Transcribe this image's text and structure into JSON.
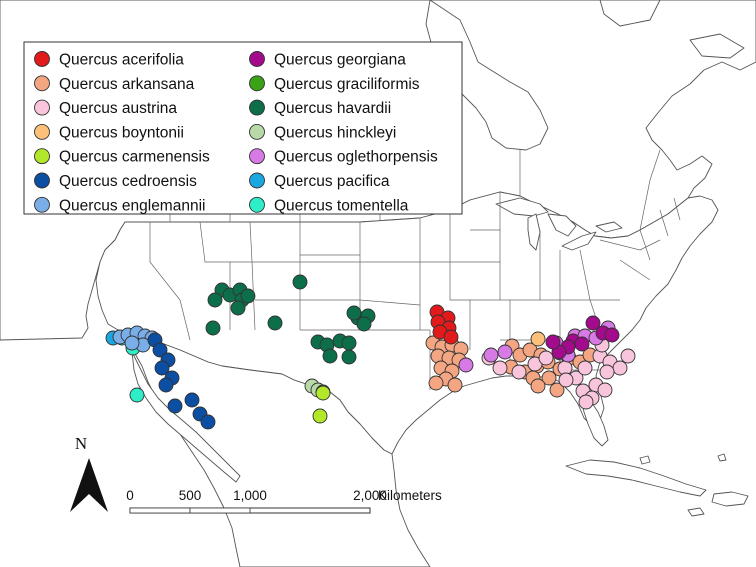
{
  "colors": {
    "land": "#ffffff",
    "sea": "#ffffff",
    "boundary": "#555555",
    "marker_outline": "#333333"
  },
  "legend": {
    "entries": [
      {
        "key": "acerifolia",
        "label": "Quercus acerifolia",
        "color": "#e31a1c"
      },
      {
        "key": "arkansana",
        "label": "Quercus arkansana",
        "color": "#f4a582"
      },
      {
        "key": "austrina",
        "label": "Quercus austrina",
        "color": "#f9c5dc"
      },
      {
        "key": "boyntonii",
        "label": "Quercus boyntonii",
        "color": "#fdc07a"
      },
      {
        "key": "carmenensis",
        "label": "Quercus carmenensis",
        "color": "#b3e82a"
      },
      {
        "key": "cedroensis",
        "label": "Quercus cedroensis",
        "color": "#0c4ea2"
      },
      {
        "key": "englemannii",
        "label": "Quercus englemannii",
        "color": "#7aaee8"
      },
      {
        "key": "georgiana",
        "label": "Quercus georgiana",
        "color": "#a30b8c"
      },
      {
        "key": "graciliformis",
        "label": "Quercus graciliformis",
        "color": "#3aa315"
      },
      {
        "key": "havardii",
        "label": "Quercus havardii",
        "color": "#0d6e4a"
      },
      {
        "key": "hinckleyi",
        "label": "Quercus hinckleyi",
        "color": "#b9d9a8"
      },
      {
        "key": "oglethorpensis",
        "label": "Quercus oglethorpensis",
        "color": "#d77ae6"
      },
      {
        "key": "pacifica",
        "label": "Quercus pacifica",
        "color": "#1aa7e0"
      },
      {
        "key": "tomentella",
        "label": "Quercus tomentella",
        "color": "#2eeec8"
      }
    ]
  },
  "north_arrow": {
    "label": "N"
  },
  "scale_bar": {
    "ticks": [
      "0",
      "500",
      "1,000",
      "2,000"
    ],
    "tick_values_km": [
      0,
      500,
      1000,
      2000
    ],
    "unit": "Kilometers"
  },
  "occurrences": {
    "acerifolia": [
      [
        437,
        312
      ],
      [
        448,
        318
      ],
      [
        438,
        322
      ],
      [
        449,
        328
      ],
      [
        440,
        332
      ],
      [
        451,
        337
      ]
    ],
    "arkansana": [
      [
        433,
        343
      ],
      [
        442,
        347
      ],
      [
        452,
        345
      ],
      [
        461,
        349
      ],
      [
        438,
        356
      ],
      [
        449,
        358
      ],
      [
        459,
        360
      ],
      [
        441,
        368
      ],
      [
        452,
        371
      ],
      [
        446,
        379
      ],
      [
        436,
        383
      ],
      [
        455,
        385
      ],
      [
        512,
        346
      ],
      [
        520,
        355
      ],
      [
        530,
        350
      ],
      [
        541,
        355
      ],
      [
        511,
        367
      ],
      [
        525,
        372
      ],
      [
        537,
        366
      ],
      [
        548,
        362
      ],
      [
        560,
        369
      ],
      [
        549,
        378
      ],
      [
        533,
        378
      ],
      [
        538,
        386
      ],
      [
        557,
        390
      ],
      [
        569,
        358
      ],
      [
        580,
        362
      ],
      [
        590,
        355
      ]
    ],
    "austrina": [
      [
        489,
        358
      ],
      [
        500,
        368
      ],
      [
        519,
        372
      ],
      [
        535,
        364
      ],
      [
        546,
        358
      ],
      [
        565,
        368
      ],
      [
        576,
        378
      ],
      [
        585,
        368
      ],
      [
        600,
        356
      ],
      [
        610,
        362
      ],
      [
        620,
        368
      ],
      [
        607,
        372
      ],
      [
        628,
        356
      ],
      [
        596,
        385
      ],
      [
        605,
        390
      ],
      [
        583,
        391
      ],
      [
        592,
        398
      ],
      [
        586,
        402
      ],
      [
        566,
        380
      ],
      [
        560,
        353
      ],
      [
        602,
        345
      ]
    ],
    "boyntonii": [
      [
        538,
        339
      ]
    ],
    "carmenensis": [
      [
        323,
        393
      ],
      [
        320,
        416
      ]
    ],
    "cedroensis": [
      [
        155,
        340
      ],
      [
        160,
        350
      ],
      [
        168,
        360
      ],
      [
        162,
        368
      ],
      [
        172,
        378
      ],
      [
        166,
        385
      ],
      [
        192,
        400
      ],
      [
        175,
        406
      ],
      [
        200,
        414
      ],
      [
        208,
        422
      ]
    ],
    "englemannii": [
      [
        120,
        337
      ],
      [
        128,
        335
      ],
      [
        137,
        333
      ],
      [
        145,
        336
      ],
      [
        152,
        338
      ],
      [
        143,
        345
      ],
      [
        132,
        343
      ]
    ],
    "georgiana": [
      [
        573,
        341
      ],
      [
        582,
        344
      ],
      [
        593,
        323
      ],
      [
        603,
        333
      ],
      [
        612,
        335
      ],
      [
        568,
        347
      ],
      [
        559,
        352
      ],
      [
        553,
        342
      ]
    ],
    "graciliformis": [
      [
        323,
        392
      ]
    ],
    "havardii": [
      [
        222,
        290
      ],
      [
        230,
        295
      ],
      [
        240,
        290
      ],
      [
        242,
        300
      ],
      [
        238,
        308
      ],
      [
        248,
        296
      ],
      [
        215,
        300
      ],
      [
        213,
        328
      ],
      [
        275,
        323
      ],
      [
        300,
        282
      ],
      [
        318,
        342
      ],
      [
        327,
        345
      ],
      [
        340,
        341
      ],
      [
        349,
        343
      ],
      [
        330,
        356
      ],
      [
        349,
        357
      ],
      [
        358,
        318
      ],
      [
        368,
        316
      ],
      [
        364,
        324
      ],
      [
        354,
        313
      ]
    ],
    "hinckleyi": [
      [
        312,
        386
      ],
      [
        318,
        390
      ]
    ],
    "oglethorpensis": [
      [
        466,
        365
      ],
      [
        491,
        355
      ],
      [
        505,
        352
      ],
      [
        556,
        343
      ],
      [
        575,
        336
      ],
      [
        585,
        336
      ],
      [
        608,
        328
      ],
      [
        596,
        338
      ],
      [
        568,
        355
      ]
    ],
    "pacifica": [
      [
        113,
        338
      ]
    ],
    "tomentella": [
      [
        122,
        338
      ],
      [
        133,
        348
      ],
      [
        137,
        395
      ]
    ]
  }
}
